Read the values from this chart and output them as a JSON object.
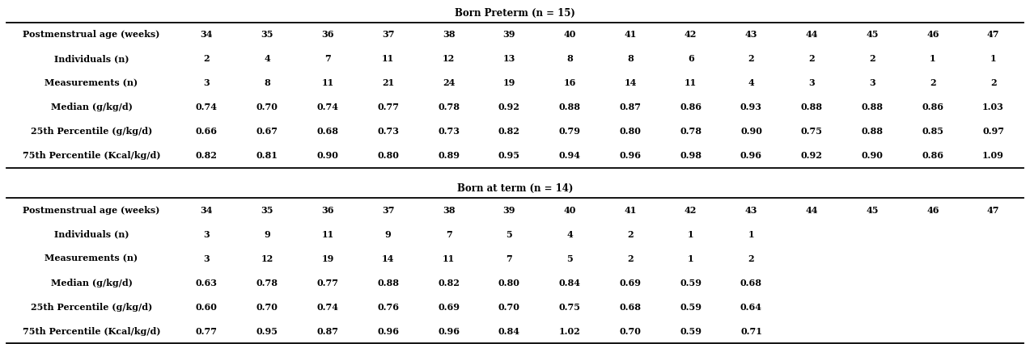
{
  "title_preterm": "Born Preterm (n = 15)",
  "title_term": "Born at term (n = 14)",
  "preterm": {
    "row_labels": [
      "Postmenstrual age (weeks)",
      "Individuals (n)",
      "Measurements (n)",
      "Median (g/kg/d)",
      "25th Percentile (g/kg/d)",
      "75th Percentile (Kcal/kg/d)"
    ],
    "data": [
      [
        "34",
        "35",
        "36",
        "37",
        "38",
        "39",
        "40",
        "41",
        "42",
        "43",
        "44",
        "45",
        "46",
        "47"
      ],
      [
        "2",
        "4",
        "7",
        "11",
        "12",
        "13",
        "8",
        "8",
        "6",
        "2",
        "2",
        "2",
        "1",
        "1"
      ],
      [
        "3",
        "8",
        "11",
        "21",
        "24",
        "19",
        "16",
        "14",
        "11",
        "4",
        "3",
        "3",
        "2",
        "2"
      ],
      [
        "0.74",
        "0.70",
        "0.74",
        "0.77",
        "0.78",
        "0.92",
        "0.88",
        "0.87",
        "0.86",
        "0.93",
        "0.88",
        "0.88",
        "0.86",
        "1.03"
      ],
      [
        "0.66",
        "0.67",
        "0.68",
        "0.73",
        "0.73",
        "0.82",
        "0.79",
        "0.80",
        "0.78",
        "0.90",
        "0.75",
        "0.88",
        "0.85",
        "0.97"
      ],
      [
        "0.82",
        "0.81",
        "0.90",
        "0.80",
        "0.89",
        "0.95",
        "0.94",
        "0.96",
        "0.98",
        "0.96",
        "0.92",
        "0.90",
        "0.86",
        "1.09"
      ]
    ]
  },
  "term": {
    "row_labels": [
      "Postmenstrual age (weeks)",
      "Individuals (n)",
      "Measurements (n)",
      "Median (g/kg/d)",
      "25th Percentile (g/kg/d)",
      "75th Percentile (Kcal/kg/d)"
    ],
    "data": [
      [
        "34",
        "35",
        "36",
        "37",
        "38",
        "39",
        "40",
        "41",
        "42",
        "43",
        "44",
        "45",
        "46",
        "47"
      ],
      [
        "3",
        "9",
        "11",
        "9",
        "7",
        "5",
        "4",
        "2",
        "1",
        "1",
        "",
        "",
        "",
        ""
      ],
      [
        "3",
        "12",
        "19",
        "14",
        "11",
        "7",
        "5",
        "2",
        "1",
        "2",
        "",
        "",
        "",
        ""
      ],
      [
        "0.63",
        "0.78",
        "0.77",
        "0.88",
        "0.82",
        "0.80",
        "0.84",
        "0.69",
        "0.59",
        "0.68",
        "",
        "",
        "",
        ""
      ],
      [
        "0.60",
        "0.70",
        "0.74",
        "0.76",
        "0.69",
        "0.70",
        "0.75",
        "0.68",
        "0.59",
        "0.64",
        "",
        "",
        "",
        ""
      ],
      [
        "0.77",
        "0.95",
        "0.87",
        "0.96",
        "0.96",
        "0.84",
        "1.02",
        "0.70",
        "0.59",
        "0.71",
        "",
        "",
        "",
        ""
      ]
    ]
  },
  "bg_color": "#ffffff",
  "text_color": "#000000",
  "line_color": "#000000",
  "font_size": 8.0,
  "title_font_size": 8.5
}
